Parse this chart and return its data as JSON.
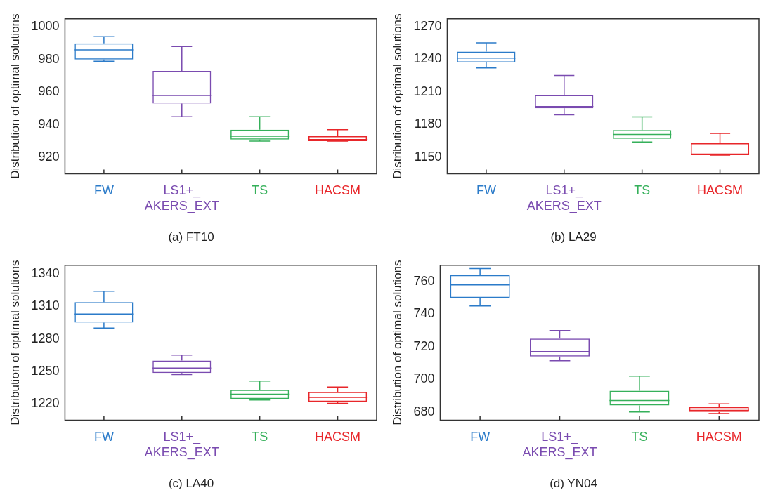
{
  "chart_data": [
    {
      "type": "box",
      "title": "(a) FT10",
      "ylabel": "Distribution of optimal solutions",
      "categories": [
        "FW",
        "LS1+_ AKERS_EXT",
        "TS",
        "HACSM"
      ],
      "colors": [
        "#2b7bc9",
        "#7a4bb0",
        "#35b05a",
        "#e8262a"
      ],
      "ylim": [
        910,
        1005
      ],
      "yticks": [
        920,
        940,
        960,
        980,
        1000
      ],
      "grid": false,
      "boxes": [
        {
          "low": 979,
          "q1": 980,
          "median": 986,
          "q3": 990,
          "high": 994
        },
        {
          "low": 945,
          "q1": 953,
          "median": 958,
          "q3": 973,
          "high": 988
        },
        {
          "low": 930,
          "q1": 931,
          "median": 933,
          "q3": 937,
          "high": 945
        },
        {
          "low": 930,
          "q1": 930,
          "median": 931,
          "q3": 933,
          "high": 937
        }
      ]
    },
    {
      "type": "box",
      "title": "(b) LA29",
      "ylabel": "Distribution of optimal solutions",
      "categories": [
        "FW",
        "LS1+_ AKERS_EXT",
        "TS",
        "HACSM"
      ],
      "colors": [
        "#2b7bc9",
        "#7a4bb0",
        "#35b05a",
        "#e8262a"
      ],
      "ylim": [
        1135,
        1277
      ],
      "yticks": [
        1150,
        1180,
        1210,
        1240,
        1270
      ],
      "grid": false,
      "boxes": [
        {
          "low": 1232,
          "q1": 1237,
          "median": 1241,
          "q3": 1247,
          "high": 1255
        },
        {
          "low": 1189,
          "q1": 1195,
          "median": 1196.5,
          "q3": 1207,
          "high": 1225
        },
        {
          "low": 1164,
          "q1": 1167,
          "median": 1171,
          "q3": 1175,
          "high": 1187
        },
        {
          "low": 1152,
          "q1": 1152,
          "median": 1153,
          "q3": 1163,
          "high": 1172
        }
      ]
    },
    {
      "type": "box",
      "title": "(c) LA40",
      "ylabel": "Distribution of optimal solutions",
      "categories": [
        "FW",
        "LS1+_ AKERS_EXT",
        "TS",
        "HACSM"
      ],
      "colors": [
        "#2b7bc9",
        "#7a4bb0",
        "#35b05a",
        "#e8262a"
      ],
      "ylim": [
        1205,
        1348
      ],
      "yticks": [
        1220,
        1250,
        1280,
        1310,
        1340
      ],
      "grid": false,
      "boxes": [
        {
          "low": 1290,
          "q1": 1295,
          "median": 1303,
          "q3": 1314,
          "high": 1324
        },
        {
          "low": 1247,
          "q1": 1248.5,
          "median": 1253,
          "q3": 1260,
          "high": 1265
        },
        {
          "low": 1223.5,
          "q1": 1224.5,
          "median": 1229,
          "q3": 1233,
          "high": 1241
        },
        {
          "low": 1220.5,
          "q1": 1222,
          "median": 1226,
          "q3": 1231,
          "high": 1235.5
        }
      ]
    },
    {
      "type": "box",
      "title": "(d) YN04",
      "ylabel": "Distribution of optimal solutions",
      "categories": [
        "FW",
        "LS1+_ AKERS_EXT",
        "TS",
        "HACSM"
      ],
      "colors": [
        "#2b7bc9",
        "#7a4bb0",
        "#35b05a",
        "#e8262a"
      ],
      "ylim": [
        675,
        770
      ],
      "yticks": [
        680,
        700,
        720,
        740,
        760
      ],
      "grid": false,
      "boxes": [
        {
          "low": 745,
          "q1": 750,
          "median": 758,
          "q3": 764,
          "high": 768
        },
        {
          "low": 711.5,
          "q1": 714,
          "median": 717,
          "q3": 725,
          "high": 730
        },
        {
          "low": 680,
          "q1": 684,
          "median": 687,
          "q3": 693,
          "high": 702
        },
        {
          "low": 679,
          "q1": 680,
          "median": 681,
          "q3": 683,
          "high": 685
        }
      ]
    }
  ]
}
